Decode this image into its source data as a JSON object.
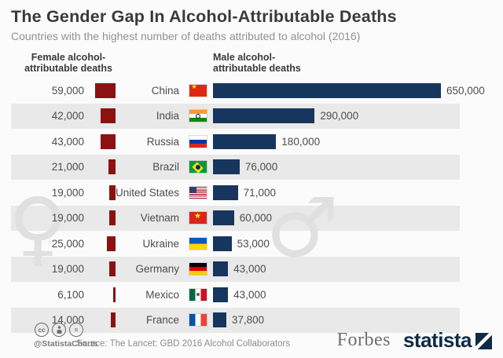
{
  "chart_data": {
    "type": "bar",
    "orientation": "horizontal",
    "diverging": true,
    "title": "The Gender Gap In Alcohol-Attributable Deaths",
    "subtitle": "Countries with the highest number of deaths attributed to alcohol (2016)",
    "categories": [
      "China",
      "India",
      "Russia",
      "Brazil",
      "United States",
      "Vietnam",
      "Ukraine",
      "Germany",
      "Mexico",
      "France"
    ],
    "flags": [
      "china",
      "india",
      "russia",
      "brazil",
      "usa",
      "vietnam",
      "ukraine",
      "germany",
      "mexico",
      "france"
    ],
    "series": [
      {
        "name": "Female alcohol-attributable deaths",
        "header_line1": "Female alcohol-",
        "header_line2": "attributable deaths",
        "color": "#8c1212",
        "values": [
          59000,
          42000,
          43000,
          21000,
          19000,
          19000,
          25000,
          19000,
          6100,
          14000
        ]
      },
      {
        "name": "Male alcohol-attributable deaths",
        "header_line1": "Male alcohol-",
        "header_line2": "attributable deaths",
        "color": "#17365d",
        "values": [
          650000,
          290000,
          180000,
          76000,
          71000,
          60000,
          53000,
          43000,
          43000,
          37800
        ]
      }
    ],
    "value_format": "en-US thousands with comma",
    "xlim": [
      0,
      650000
    ],
    "grid": false,
    "legend_position": "column-headers"
  },
  "watermarks": {
    "female_symbol": "♀",
    "male_symbol": "♂"
  },
  "footer": {
    "license": {
      "cc": "cc",
      "nd": "="
    },
    "handle": "@StatistaCharts",
    "source": "Source: The Lancet: GBD 2016 Alcohol Collaborators",
    "brands": {
      "forbes": "Forbes",
      "statista": "statista"
    }
  },
  "colors": {
    "background": "#fbfbfb",
    "row_alternate": "#e9e9e9",
    "female_bar": "#8c1212",
    "male_bar": "#17365d",
    "title_text": "#3a3a3a",
    "subtitle_text": "#919191",
    "value_text": "#4d4d4d",
    "watermark": "#e0e0e0",
    "statista_navy": "#0f2b46"
  }
}
